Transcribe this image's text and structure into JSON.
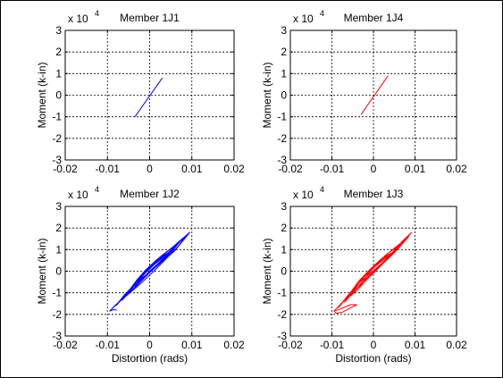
{
  "chart_data": [
    {
      "type": "line",
      "title": "Member 1J1",
      "xlabel": "",
      "ylabel": "Moment (k-in)",
      "exponent_label": {
        "base": "x 10",
        "power": "4"
      },
      "xlim": [
        -0.02,
        0.02
      ],
      "ylim": [
        -3,
        3
      ],
      "xticks": [
        "-0.02",
        "-0.01",
        "0",
        "0.01",
        "0.02"
      ],
      "yticks": [
        "3",
        "2",
        "1",
        "0",
        "-1",
        "-2",
        "-3"
      ],
      "grid": true,
      "series": [
        {
          "color": "#0000ff",
          "x": [
            -0.0035,
            0.003
          ],
          "y": [
            -1.0,
            0.8
          ]
        }
      ]
    },
    {
      "type": "line",
      "title": "Member 1J4",
      "xlabel": "",
      "ylabel": "Moment (k-in)",
      "exponent_label": {
        "base": "x 10",
        "power": "4"
      },
      "xlim": [
        -0.02,
        0.02
      ],
      "ylim": [
        -3,
        3
      ],
      "xticks": [
        "-0.02",
        "-0.01",
        "0",
        "0.01",
        "0.02"
      ],
      "yticks": [
        "3",
        "2",
        "1",
        "0",
        "-1",
        "-2",
        "-3"
      ],
      "grid": true,
      "series": [
        {
          "color": "#ff0000",
          "x": [
            -0.003,
            0.0035
          ],
          "y": [
            -0.9,
            0.9
          ]
        }
      ]
    },
    {
      "type": "line",
      "title": "Member 1J2",
      "xlabel": "Distortion (rads)",
      "ylabel": "Moment (k-in)",
      "exponent_label": {
        "base": "x 10",
        "power": "4"
      },
      "xlim": [
        -0.02,
        0.02
      ],
      "ylim": [
        -3,
        3
      ],
      "xticks": [
        "-0.02",
        "-0.01",
        "0",
        "0.01",
        "0.02"
      ],
      "yticks": [
        "3",
        "2",
        "1",
        "0",
        "-1",
        "-2",
        "-3"
      ],
      "grid": true,
      "series": [
        {
          "color": "#0000ff",
          "x": [
            -0.0095,
            -0.006,
            -0.003,
            -0.001,
            0.001,
            0.004,
            0.0065,
            0.0095,
            0.007,
            0.004,
            0.001,
            -0.002,
            -0.005,
            -0.008,
            -0.0095
          ],
          "y": [
            -1.85,
            -1.2,
            -0.4,
            0.05,
            0.3,
            0.75,
            1.3,
            1.8,
            1.2,
            0.6,
            0.0,
            -0.55,
            -1.05,
            -1.55,
            -1.85
          ]
        },
        {
          "color": "#0000ff",
          "x": [
            -0.008,
            -0.005,
            -0.002,
            0.0,
            0.002,
            0.005,
            0.0085,
            0.006,
            0.003,
            0.0,
            -0.003,
            -0.006,
            -0.008
          ],
          "y": [
            -1.6,
            -0.95,
            -0.25,
            0.1,
            0.5,
            0.95,
            1.6,
            0.95,
            0.45,
            -0.05,
            -0.5,
            -1.1,
            -1.6
          ]
        },
        {
          "color": "#0000ff",
          "x": [
            -0.0065,
            -0.004,
            -0.0015,
            0.001,
            0.0035,
            0.0075,
            0.005,
            0.002,
            -0.001,
            -0.004,
            -0.0065
          ],
          "y": [
            -1.35,
            -0.7,
            -0.1,
            0.35,
            0.8,
            1.45,
            0.85,
            0.3,
            -0.25,
            -0.75,
            -1.35
          ]
        },
        {
          "color": "#0000ff",
          "x": [
            -0.005,
            -0.003,
            -0.001,
            0.0015,
            0.004,
            0.0065,
            0.004,
            0.001,
            -0.0015,
            -0.0035,
            -0.005
          ],
          "y": [
            -1.05,
            -0.5,
            0.05,
            0.5,
            0.9,
            1.25,
            0.7,
            0.15,
            -0.35,
            -0.75,
            -1.05
          ]
        },
        {
          "color": "#0000ff",
          "x": [
            -0.0035,
            -0.002,
            0.0,
            0.002,
            0.0045,
            0.0055,
            0.003,
            0.0005,
            -0.0015,
            -0.0035
          ],
          "y": [
            -0.75,
            -0.3,
            0.15,
            0.55,
            0.85,
            1.05,
            0.55,
            0.05,
            -0.35,
            -0.75
          ]
        },
        {
          "color": "#0000ff",
          "x": [
            -0.0025,
            -0.001,
            0.001,
            0.003,
            0.0045,
            0.0025,
            0.0,
            -0.0015,
            -0.0025
          ],
          "y": [
            -0.45,
            -0.05,
            0.35,
            0.7,
            0.85,
            0.45,
            0.0,
            -0.3,
            -0.45
          ]
        },
        {
          "color": "#0000ff",
          "x": [
            -0.0095,
            -0.0085,
            -0.0078
          ],
          "y": [
            -1.85,
            -1.78,
            -1.8
          ]
        }
      ]
    },
    {
      "type": "line",
      "title": "Member 1J3",
      "xlabel": "Distortion (rads)",
      "ylabel": "Moment (k-in)",
      "exponent_label": {
        "base": "x 10",
        "power": "4"
      },
      "xlim": [
        -0.02,
        0.02
      ],
      "ylim": [
        -3,
        3
      ],
      "xticks": [
        "-0.02",
        "-0.01",
        "0",
        "0.01",
        "0.02"
      ],
      "yticks": [
        "3",
        "2",
        "1",
        "0",
        "-1",
        "-2",
        "-3"
      ],
      "grid": true,
      "series": [
        {
          "color": "#ff0000",
          "x": [
            -0.0095,
            -0.0065,
            -0.0035,
            -0.001,
            0.0015,
            0.0045,
            0.007,
            0.0092,
            0.0065,
            0.0035,
            0.0005,
            -0.0025,
            -0.0055,
            -0.0085,
            -0.0095
          ],
          "y": [
            -1.85,
            -1.25,
            -0.45,
            0.05,
            0.4,
            0.85,
            1.4,
            1.8,
            1.2,
            0.6,
            0.0,
            -0.55,
            -1.05,
            -1.65,
            -1.85
          ]
        },
        {
          "color": "#ff0000",
          "x": [
            -0.0085,
            -0.0055,
            -0.0025,
            0.0,
            0.0025,
            0.0055,
            0.0085,
            0.0055,
            0.0025,
            -0.0005,
            -0.0035,
            -0.0065,
            -0.0085
          ],
          "y": [
            -1.7,
            -1.0,
            -0.3,
            0.15,
            0.55,
            1.0,
            1.6,
            0.95,
            0.45,
            -0.05,
            -0.55,
            -1.2,
            -1.7
          ]
        },
        {
          "color": "#ff0000",
          "x": [
            -0.007,
            -0.0045,
            -0.002,
            0.0005,
            0.003,
            0.0075,
            0.005,
            0.002,
            -0.001,
            -0.004,
            -0.007
          ],
          "y": [
            -1.45,
            -0.8,
            -0.15,
            0.3,
            0.75,
            1.45,
            0.85,
            0.3,
            -0.25,
            -0.8,
            -1.45
          ]
        },
        {
          "color": "#ff0000",
          "x": [
            -0.0055,
            -0.0035,
            -0.001,
            0.0015,
            0.004,
            0.0065,
            0.004,
            0.001,
            -0.0015,
            -0.0035,
            -0.0055
          ],
          "y": [
            -1.15,
            -0.55,
            0.05,
            0.5,
            0.9,
            1.25,
            0.7,
            0.15,
            -0.35,
            -0.8,
            -1.15
          ]
        },
        {
          "color": "#ff0000",
          "x": [
            -0.004,
            -0.002,
            0.0,
            0.002,
            0.0045,
            0.0055,
            0.003,
            0.0005,
            -0.0015,
            -0.004
          ],
          "y": [
            -0.8,
            -0.3,
            0.15,
            0.55,
            0.85,
            1.05,
            0.55,
            0.05,
            -0.35,
            -0.8
          ]
        },
        {
          "color": "#ff0000",
          "x": [
            -0.0095,
            -0.009,
            -0.0075,
            -0.0055,
            -0.004,
            -0.0055,
            -0.008,
            -0.0095
          ],
          "y": [
            -1.85,
            -1.95,
            -1.9,
            -1.7,
            -1.55,
            -1.55,
            -1.75,
            -1.85
          ]
        },
        {
          "color": "#ff0000",
          "x": [
            -0.0025,
            -0.001,
            0.001,
            0.003,
            0.0045,
            0.0025,
            0.0,
            -0.0015,
            -0.0025
          ],
          "y": [
            -0.45,
            -0.05,
            0.35,
            0.7,
            0.85,
            0.45,
            0.0,
            -0.3,
            -0.45
          ]
        }
      ]
    }
  ]
}
